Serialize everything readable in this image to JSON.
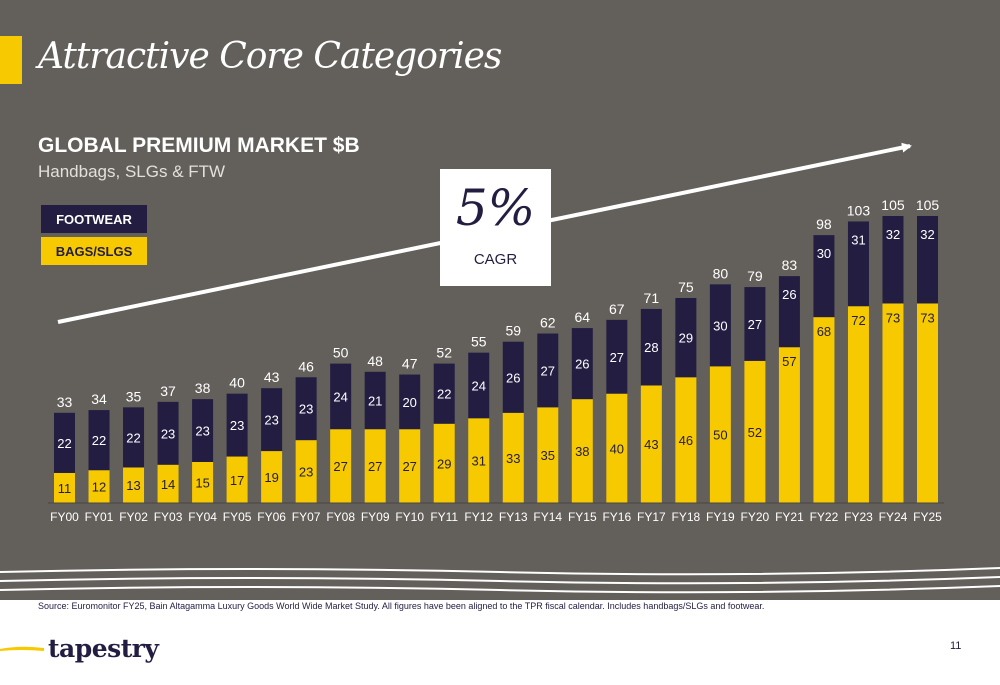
{
  "slide": {
    "title": "Attractive Core Categories",
    "source_note": "Source: Euromonitor FY25, Bain Altagamma Luxury Goods World Wide Market Study. All figures have been aligned to the TPR fiscal calendar. Includes handbags/SLGs and footwear.",
    "logo_text": "tapestry",
    "page_number": "11"
  },
  "colors": {
    "background": "#635f5a",
    "footwear": "#231d42",
    "bags": "#f7c900",
    "accent": "#f7c900"
  },
  "cagr": {
    "value": "5%",
    "label": "CAGR"
  },
  "chart_data": {
    "type": "bar",
    "stacked": true,
    "title": "GLOBAL PREMIUM MARKET $B",
    "subtitle": "Handbags, SLGs & FTW",
    "categories": [
      "FY00",
      "FY01",
      "FY02",
      "FY03",
      "FY04",
      "FY05",
      "FY06",
      "FY07",
      "FY08",
      "FY09",
      "FY10",
      "FY11",
      "FY12",
      "FY13",
      "FY14",
      "FY15",
      "FY16",
      "FY17",
      "FY18",
      "FY19",
      "FY20",
      "FY21",
      "FY22",
      "FY23",
      "FY24",
      "FY25"
    ],
    "series": [
      {
        "name": "BAGS/SLGS",
        "values": [
          11,
          12,
          13,
          14,
          15,
          17,
          19,
          23,
          27,
          27,
          27,
          29,
          31,
          33,
          35,
          38,
          40,
          43,
          46,
          50,
          52,
          57,
          68,
          72,
          73,
          73
        ]
      },
      {
        "name": "FOOTWEAR",
        "values": [
          22,
          22,
          22,
          23,
          23,
          23,
          23,
          23,
          24,
          21,
          20,
          22,
          24,
          26,
          27,
          26,
          27,
          28,
          29,
          30,
          27,
          26,
          30,
          31,
          32,
          32
        ]
      }
    ],
    "totals": [
      33,
      34,
      35,
      37,
      38,
      40,
      43,
      46,
      50,
      48,
      47,
      52,
      55,
      59,
      62,
      64,
      67,
      71,
      75,
      80,
      79,
      83,
      98,
      103,
      105,
      105
    ],
    "ylim": [
      0,
      105
    ],
    "legend": [
      "FOOTWEAR",
      "BAGS/SLGS"
    ],
    "annotation": "5% CAGR"
  }
}
